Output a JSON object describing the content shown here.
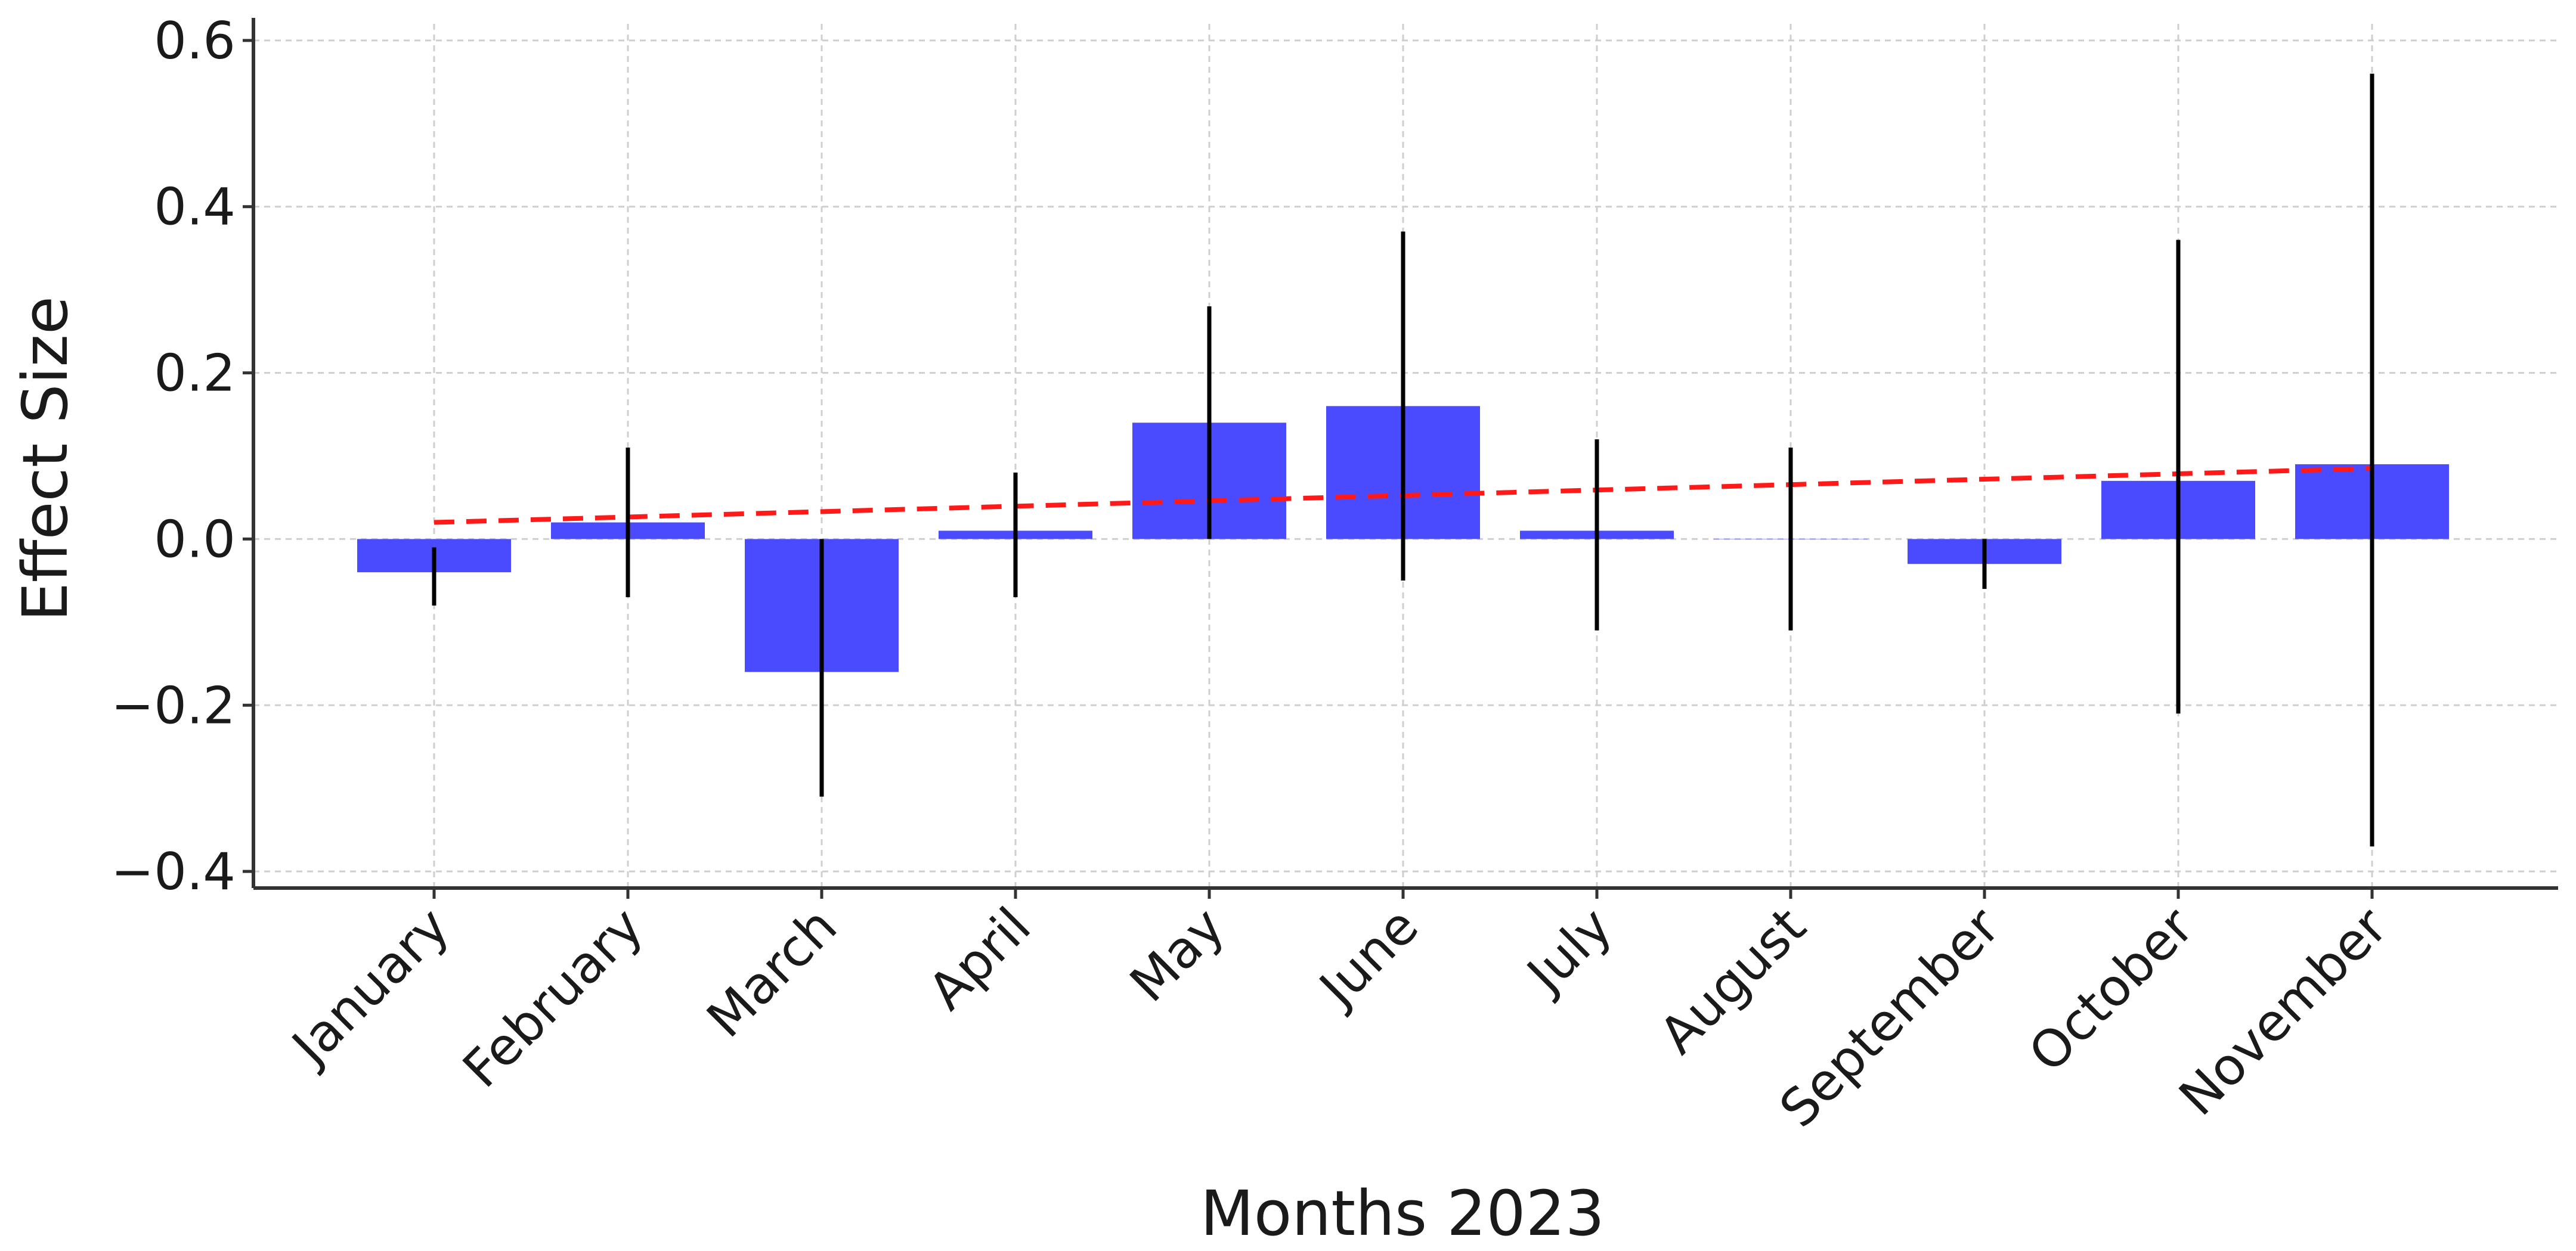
{
  "chart_data": {
    "type": "bar",
    "xlabel": "Months 2023",
    "ylabel": "Effect Size",
    "ylim": [
      -0.42,
      0.62
    ],
    "yticks": [
      -0.4,
      -0.2,
      0.0,
      0.2,
      0.4,
      0.6
    ],
    "ytick_labels": [
      "−0.4",
      "−0.2",
      "0.0",
      "0.2",
      "0.4",
      "0.6"
    ],
    "grid": true,
    "bar_color": "#4a4aff",
    "trend_color": "#ff1a1a",
    "errorbar_color": "#000000",
    "categories": [
      "January",
      "February",
      "March",
      "April",
      "May",
      "June",
      "July",
      "August",
      "September",
      "October",
      "November"
    ],
    "values": [
      -0.04,
      0.02,
      -0.16,
      0.01,
      0.14,
      0.16,
      0.01,
      0.0,
      -0.03,
      0.07,
      0.09
    ],
    "error_low": [
      -0.08,
      -0.07,
      -0.31,
      -0.07,
      0.0,
      -0.05,
      -0.11,
      -0.11,
      -0.06,
      -0.21,
      -0.37
    ],
    "error_high": [
      -0.01,
      0.11,
      0.0,
      0.08,
      0.28,
      0.37,
      0.12,
      0.11,
      0.0,
      0.36,
      0.56
    ],
    "trend": {
      "style": "dashed",
      "start": 0.02,
      "end": 0.085
    }
  }
}
